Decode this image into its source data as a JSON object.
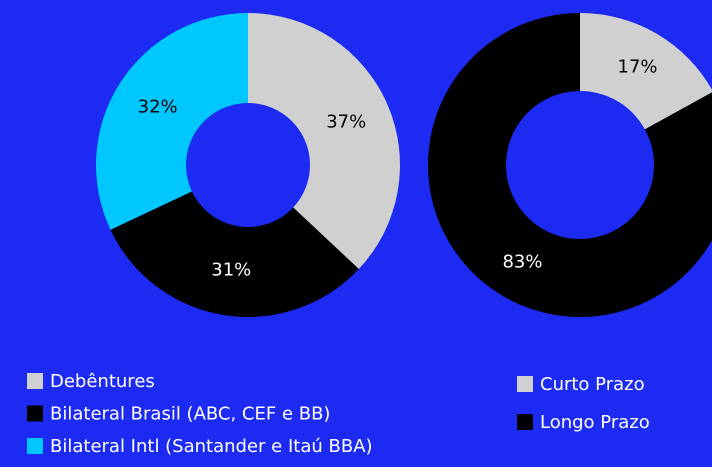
{
  "chart_data": [
    {
      "type": "pie",
      "categories": [
        "Debêntures",
        "Bilateral Brasil (ABC, CEF e BB)",
        "Bilateral Intl (Santander e Itaú BBA)"
      ],
      "values": [
        37,
        31,
        32
      ],
      "value_labels": [
        "37%",
        "31%",
        "32%"
      ],
      "colors": [
        "#d0d0d0",
        "#000000",
        "#00c8ff"
      ]
    },
    {
      "type": "pie",
      "categories": [
        "Curto Prazo",
        "Longo Prazo"
      ],
      "values": [
        17,
        83
      ],
      "value_labels": [
        "17%",
        "83%"
      ],
      "colors": [
        "#d0d0d0",
        "#000000"
      ]
    }
  ]
}
